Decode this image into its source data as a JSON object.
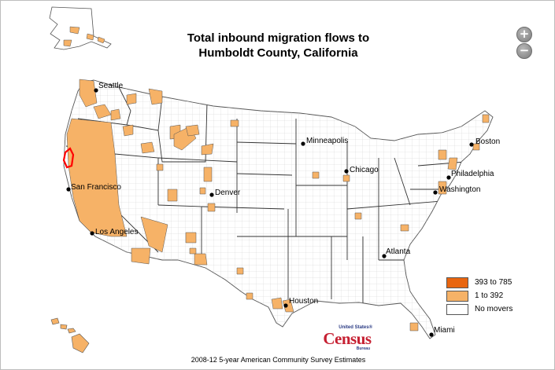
{
  "title": {
    "line1": "Total inbound migration flows to",
    "line2": "Humboldt County, California"
  },
  "zoom": {
    "in_label": "+",
    "out_label": "−"
  },
  "cities": [
    {
      "name": "Seattle"
    },
    {
      "name": "San Francisco"
    },
    {
      "name": "Los Angeles"
    },
    {
      "name": "Denver"
    },
    {
      "name": "Minneapolis"
    },
    {
      "name": "Chicago"
    },
    {
      "name": "Boston"
    },
    {
      "name": "Philadelphia"
    },
    {
      "name": "Washington"
    },
    {
      "name": "Atlanta"
    },
    {
      "name": "Houston"
    },
    {
      "name": "Miami"
    }
  ],
  "legend": {
    "items": [
      {
        "label": "393 to 785",
        "color": "#e8650f"
      },
      {
        "label": "1 to 392",
        "color": "#f6b267"
      },
      {
        "label": "No movers",
        "color": "#ffffff"
      }
    ]
  },
  "highlight": {
    "color": "#ff0000"
  },
  "logo": {
    "top": "United States®",
    "main": "Census",
    "bottom": "Bureau"
  },
  "source": "2008-12 5-year American Community Survey Estimates"
}
